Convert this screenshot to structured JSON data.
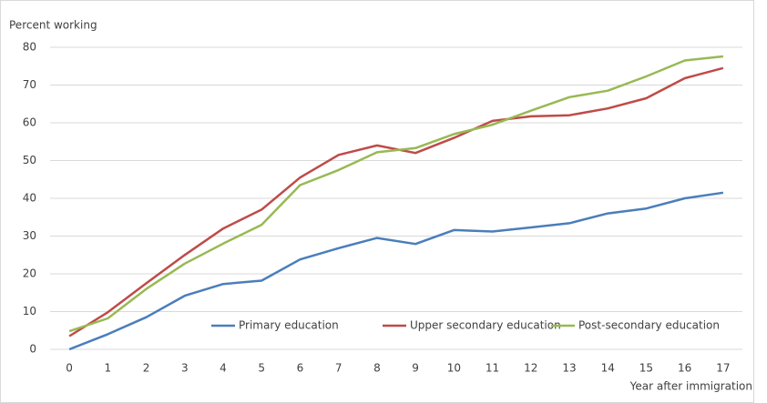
{
  "chart_data": {
    "type": "line",
    "ylabel": "Percent working",
    "xlabel": "Year after immigration",
    "categories": [
      "0",
      "1",
      "2",
      "3",
      "4",
      "5",
      "6",
      "7",
      "8",
      "9",
      "10",
      "11",
      "12",
      "13",
      "14",
      "15",
      "16",
      "17"
    ],
    "series": [
      {
        "name": "Primary education",
        "color": "#4a7ebb",
        "values": [
          0,
          4,
          8.5,
          14.2,
          17.3,
          18.2,
          23.8,
          26.8,
          29.5,
          27.9,
          31.6,
          31.2,
          32.3,
          33.4,
          36,
          37.3,
          40,
          41.5
        ]
      },
      {
        "name": "Upper secondary education",
        "color": "#be4b48",
        "values": [
          3.5,
          9.8,
          17.5,
          25,
          32,
          37,
          45.5,
          51.5,
          54,
          52,
          56,
          60.5,
          61.7,
          62,
          63.8,
          66.5,
          71.8,
          74.5
        ]
      },
      {
        "name": "Post-secondary education",
        "color": "#98b954",
        "values": [
          4.8,
          8.2,
          16,
          22.7,
          28,
          33,
          43.5,
          47.5,
          52.2,
          53.3,
          57,
          59.5,
          63.2,
          66.8,
          68.5,
          72.3,
          76.5,
          77.6
        ]
      }
    ],
    "ylim": [
      0,
      80
    ],
    "yticks": [
      0,
      10,
      20,
      30,
      40,
      50,
      60,
      70,
      80
    ],
    "grid": true,
    "legend": "lower right"
  }
}
